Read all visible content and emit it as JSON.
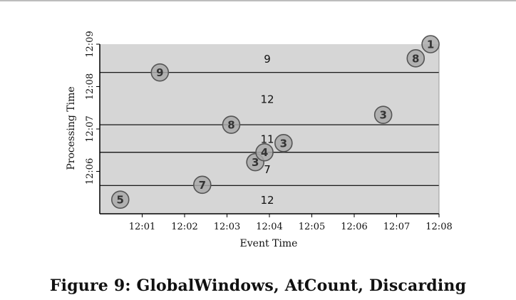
{
  "figure_caption": "Figure 9: GlobalWindows, AtCount, Discarding",
  "chart_data": {
    "type": "scatter",
    "title": "",
    "xlabel": "Event Time",
    "ylabel": "Processing Time",
    "xlim": [
      "12:00",
      "12:08"
    ],
    "ylim": [
      "12:05:00",
      "12:09:00"
    ],
    "x_ticks": [
      "12:01",
      "12:02",
      "12:03",
      "12:04",
      "12:05",
      "12:06",
      "12:07",
      "12:08"
    ],
    "y_ticks": [
      "12:06",
      "12:07",
      "12:08",
      "12:09"
    ],
    "points": [
      {
        "event_time": "12:00:29",
        "processing_time": "12:05:20",
        "value": 5
      },
      {
        "event_time": "12:02:25",
        "processing_time": "12:05:41",
        "value": 7
      },
      {
        "event_time": "12:03:40",
        "processing_time": "12:06:13",
        "value": 3
      },
      {
        "event_time": "12:03:53",
        "processing_time": "12:06:27",
        "value": 4
      },
      {
        "event_time": "12:04:20",
        "processing_time": "12:06:40",
        "value": 3
      },
      {
        "event_time": "12:03:06",
        "processing_time": "12:07:06",
        "value": 8
      },
      {
        "event_time": "12:06:41",
        "processing_time": "12:07:20",
        "value": 3
      },
      {
        "event_time": "12:01:25",
        "processing_time": "12:08:20",
        "value": 9
      },
      {
        "event_time": "12:07:27",
        "processing_time": "12:08:40",
        "value": 8
      },
      {
        "event_time": "12:07:48",
        "processing_time": "12:09:00",
        "value": 1
      }
    ],
    "window_panes": [
      {
        "trigger_processing_time": "12:05:40",
        "sum": 12
      },
      {
        "trigger_processing_time": "12:06:27",
        "sum": 7
      },
      {
        "trigger_processing_time": "12:07:06",
        "sum": 11
      },
      {
        "trigger_processing_time": "12:08:20",
        "sum": 12
      },
      {
        "trigger_processing_time": "12:09:00",
        "sum": 9
      }
    ],
    "grid": false,
    "colors": {
      "pane_fill": "#d6d6d6",
      "point_fill": "#a9a9a9",
      "point_stroke": "#555555",
      "axis": "#000000",
      "point_text": "#333333"
    }
  }
}
